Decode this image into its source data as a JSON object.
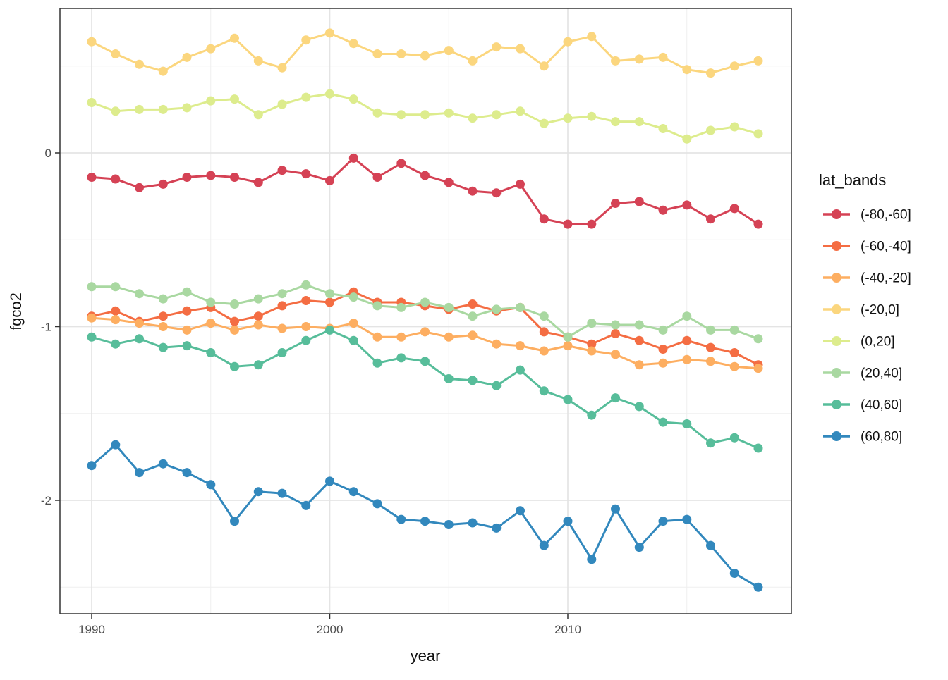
{
  "chart_data": {
    "type": "line",
    "title": "",
    "xlabel": "year",
    "ylabel": "fgco2",
    "legend_title": "lat_bands",
    "legend_position": "right",
    "grid": "on",
    "background": "#ffffff",
    "panel_border_color": "#333333",
    "major_grid_color": "#e4e4e4",
    "minor_grid_color": "#efefef",
    "tick_label_color": "#4d4d4d",
    "xlim": [
      1988.7,
      2019.4
    ],
    "ylim": [
      -2.65,
      0.83
    ],
    "x_ticks": [
      1990,
      2000,
      2010
    ],
    "x_tick_labels": [
      "1990",
      "2000",
      "2010"
    ],
    "x_minor_ticks": [
      1995,
      2005,
      2015
    ],
    "y_ticks": [
      0,
      -1,
      -2
    ],
    "y_tick_labels": [
      "0",
      "-1",
      "-2"
    ],
    "y_minor_ticks": [
      0.5,
      -0.5,
      -1.5,
      -2.5
    ],
    "x": [
      1990,
      1991,
      1992,
      1993,
      1994,
      1995,
      1996,
      1997,
      1998,
      1999,
      2000,
      2001,
      2002,
      2003,
      2004,
      2005,
      2006,
      2007,
      2008,
      2009,
      2010,
      2011,
      2012,
      2013,
      2014,
      2015,
      2016,
      2017,
      2018
    ],
    "series": [
      {
        "name": "(-80,-60]",
        "color": "#D54255",
        "values": [
          -0.14,
          -0.15,
          -0.2,
          -0.18,
          -0.14,
          -0.13,
          -0.14,
          -0.17,
          -0.1,
          -0.12,
          -0.16,
          -0.03,
          -0.14,
          -0.06,
          -0.13,
          -0.17,
          -0.22,
          -0.23,
          -0.18,
          -0.38,
          -0.41,
          -0.41,
          -0.29,
          -0.28,
          -0.33,
          -0.3,
          -0.38,
          -0.32,
          -0.41
        ]
      },
      {
        "name": "(-60,-40]",
        "color": "#F46D43",
        "values": [
          -0.94,
          -0.91,
          -0.97,
          -0.94,
          -0.91,
          -0.89,
          -0.97,
          -0.94,
          -0.88,
          -0.85,
          -0.86,
          -0.8,
          -0.86,
          -0.86,
          -0.88,
          -0.9,
          -0.87,
          -0.91,
          -0.89,
          -1.03,
          -1.06,
          -1.1,
          -1.04,
          -1.08,
          -1.13,
          -1.08,
          -1.12,
          -1.15,
          -1.22
        ]
      },
      {
        "name": "(-40,-20]",
        "color": "#FDAE61",
        "values": [
          -0.95,
          -0.96,
          -0.98,
          -1.0,
          -1.02,
          -0.98,
          -1.02,
          -0.99,
          -1.01,
          -1.0,
          -1.01,
          -0.98,
          -1.06,
          -1.06,
          -1.03,
          -1.06,
          -1.05,
          -1.1,
          -1.11,
          -1.14,
          -1.11,
          -1.14,
          -1.16,
          -1.22,
          -1.21,
          -1.19,
          -1.2,
          -1.23,
          -1.24
        ]
      },
      {
        "name": "(-20,0]",
        "color": "#FBD67E",
        "values": [
          0.64,
          0.57,
          0.51,
          0.47,
          0.55,
          0.6,
          0.66,
          0.53,
          0.49,
          0.65,
          0.69,
          0.63,
          0.57,
          0.57,
          0.56,
          0.59,
          0.53,
          0.61,
          0.6,
          0.5,
          0.64,
          0.67,
          0.53,
          0.54,
          0.55,
          0.48,
          0.46,
          0.5,
          0.53
        ]
      },
      {
        "name": "(0,20]",
        "color": "#DDEC8D",
        "values": [
          0.29,
          0.24,
          0.25,
          0.25,
          0.26,
          0.3,
          0.31,
          0.22,
          0.28,
          0.32,
          0.34,
          0.31,
          0.23,
          0.22,
          0.22,
          0.23,
          0.2,
          0.22,
          0.24,
          0.17,
          0.2,
          0.21,
          0.18,
          0.18,
          0.14,
          0.08,
          0.13,
          0.15,
          0.11
        ]
      },
      {
        "name": "(20,40]",
        "color": "#A9D8A1",
        "values": [
          -0.77,
          -0.77,
          -0.81,
          -0.84,
          -0.8,
          -0.86,
          -0.87,
          -0.84,
          -0.81,
          -0.76,
          -0.81,
          -0.83,
          -0.88,
          -0.89,
          -0.86,
          -0.89,
          -0.94,
          -0.9,
          -0.89,
          -0.94,
          -1.06,
          -0.98,
          -0.99,
          -0.99,
          -1.02,
          -0.94,
          -1.02,
          -1.02,
          -1.07
        ]
      },
      {
        "name": "(40,60]",
        "color": "#57BD9A",
        "values": [
          -1.06,
          -1.1,
          -1.07,
          -1.12,
          -1.11,
          -1.15,
          -1.23,
          -1.22,
          -1.15,
          -1.08,
          -1.02,
          -1.08,
          -1.21,
          -1.18,
          -1.2,
          -1.3,
          -1.31,
          -1.34,
          -1.25,
          -1.37,
          -1.42,
          -1.51,
          -1.41,
          -1.46,
          -1.55,
          -1.56,
          -1.67,
          -1.64,
          -1.7
        ]
      },
      {
        "name": "(60,80]",
        "color": "#3288BD",
        "values": [
          -1.8,
          -1.68,
          -1.84,
          -1.79,
          -1.84,
          -1.91,
          -2.12,
          -1.95,
          -1.96,
          -2.03,
          -1.89,
          -1.95,
          -2.02,
          -2.11,
          -2.12,
          -2.14,
          -2.13,
          -2.16,
          -2.06,
          -2.26,
          -2.12,
          -2.34,
          -2.05,
          -2.27,
          -2.12,
          -2.11,
          -2.26,
          -2.42,
          -2.5
        ]
      }
    ]
  }
}
